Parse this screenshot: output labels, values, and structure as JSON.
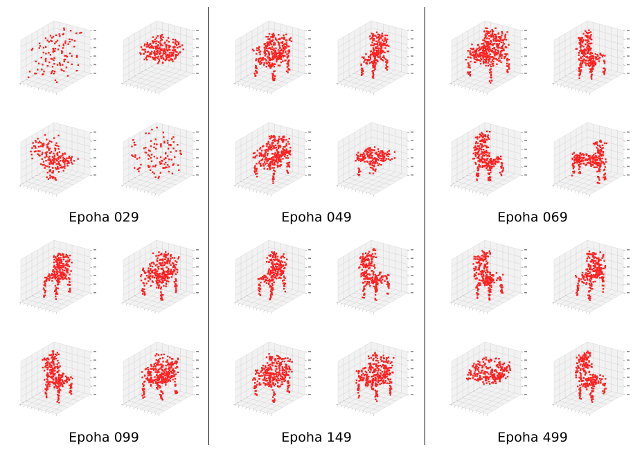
{
  "colors": {
    "point_color": "#ff2020",
    "pane_color": "#f2f2f2",
    "grid_color": "#c8c8c8",
    "divider_color": "#000000"
  },
  "groups": [
    {
      "label": "Epoha 029",
      "shapes": [
        "scatter",
        "sofa",
        "recliner",
        "scatter"
      ]
    },
    {
      "label": "Epoha 049",
      "shapes": [
        "armchair",
        "chair-front",
        "armchair",
        "table"
      ]
    },
    {
      "label": "Epoha 069",
      "shapes": [
        "armchair-dense",
        "chair-side",
        "chair-side",
        "chair-long"
      ]
    },
    {
      "label": "Epoha 099",
      "shapes": [
        "chair-front",
        "armchair",
        "chair-side",
        "armchair"
      ]
    },
    {
      "label": "Epoha 149",
      "shapes": [
        "chair-front",
        "chair-side",
        "armchair",
        "armchair"
      ]
    },
    {
      "label": "Epoha 499",
      "shapes": [
        "chair-side",
        "chair-front",
        "sofa",
        "chair-side"
      ]
    }
  ]
}
